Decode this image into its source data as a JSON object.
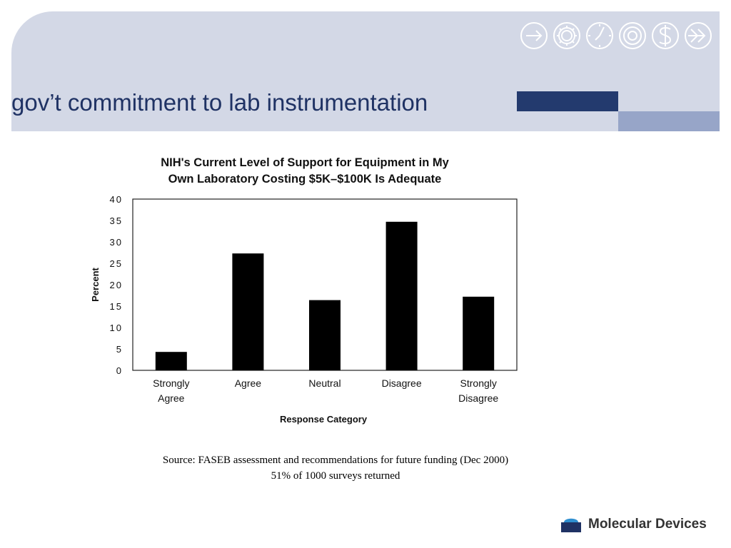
{
  "slide": {
    "title": "gov’t commitment to lab instrumentation",
    "source_line1": "Source: FASEB assessment and recommendations for future funding (Dec 2000)",
    "source_line2": "51% of 1000 surveys returned",
    "logo_text": "Molecular Devices",
    "icons": [
      "arrow-right-icon",
      "gear-icon",
      "clock-icon",
      "target-icon",
      "dollar-icon",
      "double-arrow-icon"
    ],
    "colors": {
      "band": "#d3d8e6",
      "accent_dark": "#233a6e",
      "accent_light": "#97a5c8",
      "title": "#1f3264"
    }
  },
  "chart_data": {
    "type": "bar",
    "title_line1": "NIH's Current Level of Support for Equipment in My",
    "title_line2": "Own Laboratory Costing $5K–$100K Is Adequate",
    "categories": [
      [
        "Strongly",
        "Agree"
      ],
      [
        "Agree"
      ],
      [
        "Neutral"
      ],
      [
        "Disagree"
      ],
      [
        "Strongly",
        "Disagree"
      ]
    ],
    "values": [
      4.3,
      27.3,
      16.4,
      34.7,
      17.2
    ],
    "xlabel": "Response Category",
    "ylabel": "Percent",
    "ylim": [
      0,
      40
    ],
    "yticks": [
      "0",
      "5",
      "10",
      "15",
      "20",
      "25",
      "30",
      "35",
      "40"
    ],
    "grid": false,
    "bar_color": "#000000"
  }
}
